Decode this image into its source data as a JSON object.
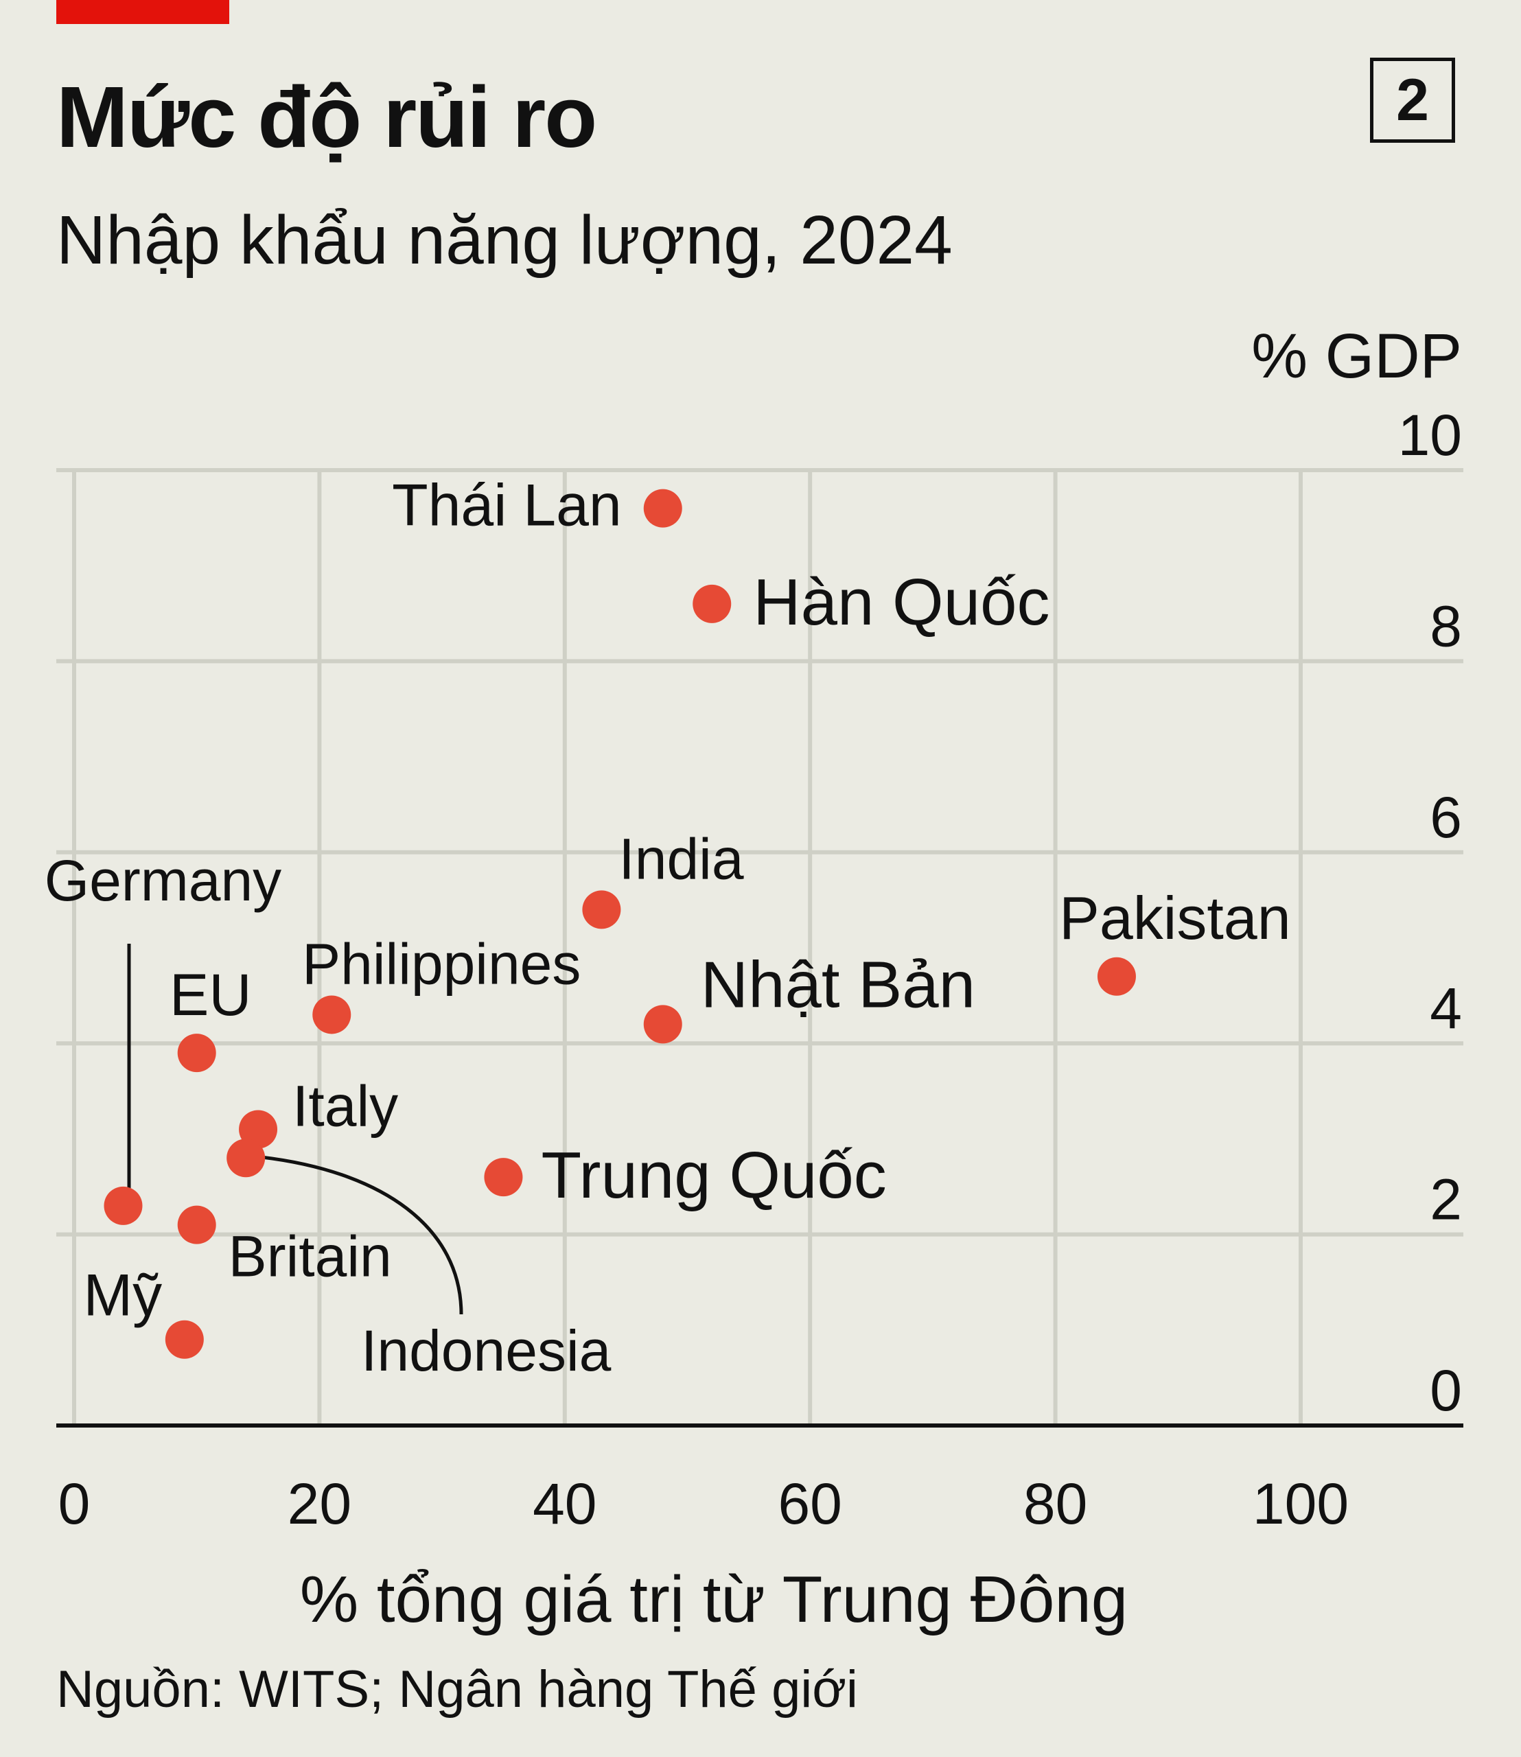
{
  "header": {
    "title": "Mức độ rủi ro",
    "subtitle": "Nhập khẩu năng lượng, 2024",
    "chart_number": "2",
    "accent_color": "#e3120b"
  },
  "footer": {
    "source": "Nguồn: WITS; Ngân hàng Thế giới"
  },
  "chart_data": {
    "type": "scatter",
    "title": "Mức độ rủi ro",
    "subtitle": "Nhập khẩu năng lượng, 2024",
    "xlabel": "% tổng giá trị từ Trung Đông",
    "ylabel": "% GDP",
    "xlim": [
      0,
      110
    ],
    "ylim": [
      0,
      10
    ],
    "x_ticks": [
      0,
      20,
      40,
      60,
      80,
      100
    ],
    "y_ticks": [
      0,
      2,
      4,
      6,
      8,
      10
    ],
    "grid": true,
    "point_color": "#e64a35",
    "points": [
      {
        "label": "Thái Lan",
        "x": 48,
        "y": 9.6
      },
      {
        "label": "Hàn Quốc",
        "x": 52,
        "y": 8.6
      },
      {
        "label": "India",
        "x": 43,
        "y": 5.4
      },
      {
        "label": "Pakistan",
        "x": 85,
        "y": 4.7
      },
      {
        "label": "Nhật Bản",
        "x": 48,
        "y": 4.2
      },
      {
        "label": "Philippines",
        "x": 21,
        "y": 4.3
      },
      {
        "label": "EU",
        "x": 10,
        "y": 3.9
      },
      {
        "label": "Italy",
        "x": 15,
        "y": 3.1
      },
      {
        "label": "Indonesia",
        "x": 14,
        "y": 2.8
      },
      {
        "label": "Trung Quốc",
        "x": 35,
        "y": 2.6
      },
      {
        "label": "Germany",
        "x": 4,
        "y": 2.3
      },
      {
        "label": "Britain",
        "x": 10,
        "y": 2.1
      },
      {
        "label": "Mỹ",
        "x": 9,
        "y": 0.9
      }
    ]
  }
}
